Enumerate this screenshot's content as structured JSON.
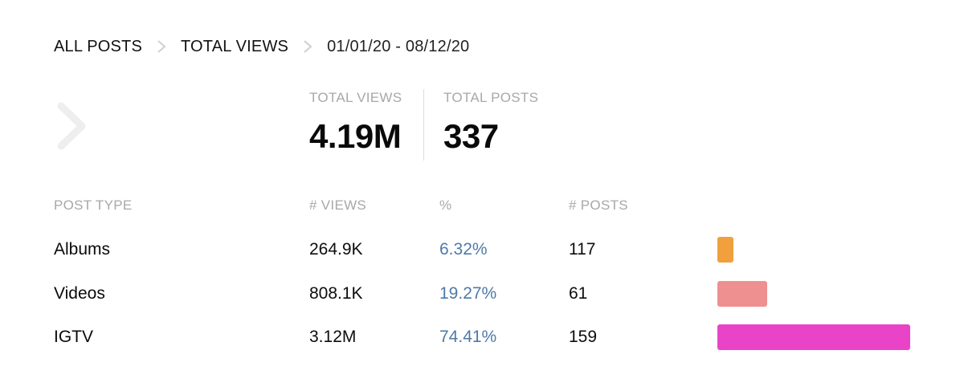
{
  "breadcrumb": {
    "items": [
      "ALL POSTS",
      "TOTAL VIEWS"
    ],
    "date_range": "01/01/20 - 08/12/20"
  },
  "summary": {
    "total_views_label": "TOTAL VIEWS",
    "total_views_value": "4.19M",
    "total_posts_label": "TOTAL POSTS",
    "total_posts_value": "337"
  },
  "table": {
    "headers": {
      "type": "POST TYPE",
      "views": "# VIEWS",
      "pct": "%",
      "posts": "# POSTS"
    },
    "rows": [
      {
        "type": "Albums",
        "views": "264.9K",
        "pct": "6.32%",
        "posts": "117",
        "share": 0.0632,
        "color": "#f0a03c"
      },
      {
        "type": "Videos",
        "views": "808.1K",
        "pct": "19.27%",
        "posts": "61",
        "share": 0.1927,
        "color": "#ef9090"
      },
      {
        "type": "IGTV",
        "views": "3.12M",
        "pct": "74.41%",
        "posts": "159",
        "share": 0.7441,
        "color": "#e944c8"
      }
    ]
  },
  "icons": {
    "breadcrumb_separator": "chevron-right-icon",
    "back": "chevron-right-icon"
  },
  "colors": {
    "percent_text": "#4f7aa8",
    "muted_label": "#a8a8a8"
  }
}
